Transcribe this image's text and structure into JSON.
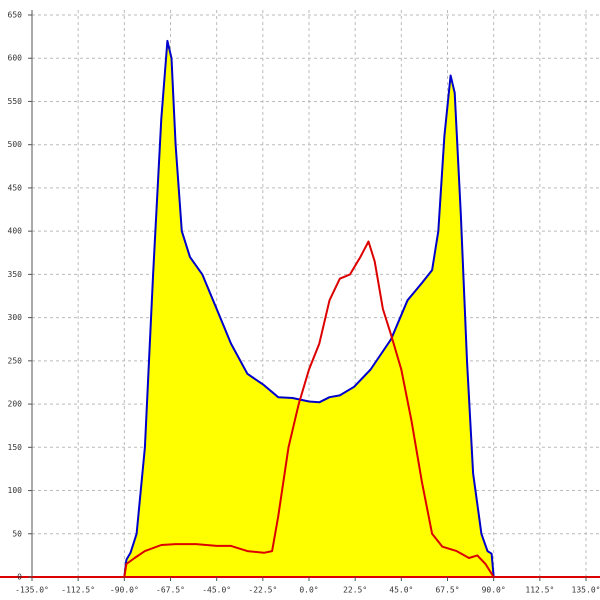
{
  "chart_data": {
    "type": "line",
    "xlim": [
      -135,
      135
    ],
    "ylim": [
      0,
      650
    ],
    "xticks": [
      {
        "value": -135,
        "label": "-135.0°"
      },
      {
        "value": -112.5,
        "label": "-112.5°"
      },
      {
        "value": -90,
        "label": "-90.0°"
      },
      {
        "value": -67.5,
        "label": "-67.5°"
      },
      {
        "value": -45,
        "label": "-45.0°"
      },
      {
        "value": -22.5,
        "label": "-22.5°"
      },
      {
        "value": 0,
        "label": "0.0°"
      },
      {
        "value": 22.5,
        "label": "22.5°"
      },
      {
        "value": 45,
        "label": "45.0°"
      },
      {
        "value": 67.5,
        "label": "67.5°"
      },
      {
        "value": 90,
        "label": "90.0°"
      },
      {
        "value": 112.5,
        "label": "112.5°"
      },
      {
        "value": 135,
        "label": "135.0°"
      }
    ],
    "yticks": [
      0,
      50,
      100,
      150,
      200,
      250,
      300,
      350,
      400,
      450,
      500,
      550,
      600,
      650
    ],
    "grid": true,
    "series": [
      {
        "color": "#0000cc",
        "fill": "#ffff00",
        "x": [
          -90,
          -89,
          -87,
          -84,
          -80,
          -76,
          -72,
          -69,
          -67,
          -65,
          -62,
          -58,
          -52,
          -45,
          -38,
          -30,
          -22,
          -15,
          -8,
          0,
          5,
          10,
          15,
          22,
          30,
          40,
          48,
          55,
          60,
          63,
          66,
          69,
          71,
          74,
          77,
          80,
          84,
          87,
          89,
          90
        ],
        "values": [
          0,
          20,
          28,
          50,
          150,
          350,
          530,
          620,
          600,
          500,
          400,
          370,
          350,
          310,
          270,
          235,
          222,
          208,
          207,
          203,
          202,
          208,
          210,
          220,
          240,
          275,
          320,
          340,
          355,
          400,
          510,
          580,
          560,
          420,
          250,
          120,
          50,
          30,
          27,
          0
        ]
      },
      {
        "color": "#dd0000",
        "x": [
          -90,
          -89,
          -85,
          -80,
          -72,
          -65,
          -55,
          -45,
          -38,
          -30,
          -22,
          -18,
          -15,
          -10,
          -5,
          0,
          5,
          10,
          15,
          20,
          25,
          29,
          32,
          36,
          40,
          45,
          50,
          55,
          60,
          65,
          72,
          78,
          82,
          86,
          90
        ],
        "values": [
          0,
          15,
          22,
          30,
          37,
          38,
          38,
          36,
          36,
          30,
          28,
          30,
          70,
          150,
          200,
          240,
          270,
          320,
          345,
          350,
          370,
          388,
          365,
          310,
          280,
          240,
          180,
          110,
          50,
          35,
          30,
          22,
          25,
          15,
          0
        ]
      }
    ]
  }
}
